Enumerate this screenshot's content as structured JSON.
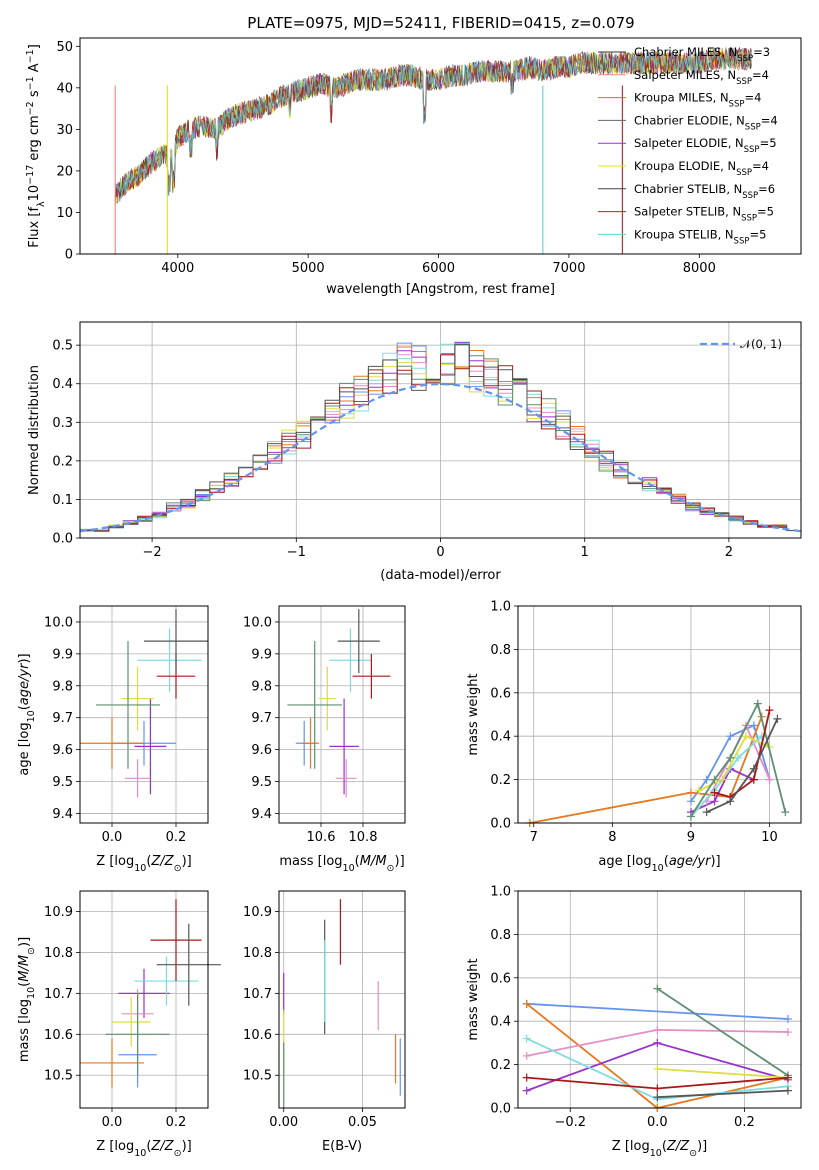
{
  "colors": [
    "#333333",
    "#f08080",
    "#cc7a00",
    "#666666",
    "#9932cc",
    "#e6e600",
    "#444444",
    "#b22222",
    "#5fd3d3"
  ],
  "panel_colors": [
    "#1f77b4",
    "#ff7f0e",
    "#2ca02c",
    "#d62728",
    "#9467bd",
    "#8c564b",
    "#e377c2",
    "#7f7f7f",
    "#bcbd22",
    "#17becf"
  ],
  "series_colors": [
    "#6495ed",
    "#e6781e",
    "#9932cc",
    "#e68cc8",
    "#7fdddd",
    "#dddd44",
    "#5f8f6f",
    "#aa1818",
    "#555555"
  ],
  "chart_data": [
    {
      "type": "line",
      "title": "PLATE=0975, MJD=52411, FIBERID=0415, z=0.079",
      "xlabel": "wavelength [Angstrom, rest frame]",
      "ylabel": "Flux [fλ10⁻¹⁷ erg cm⁻² s⁻¹ A⁻¹]",
      "xlim": [
        3250,
        8780
      ],
      "ylim": [
        0,
        52
      ],
      "xticks": [
        4000,
        5000,
        6000,
        7000,
        8000
      ],
      "yticks": [
        0,
        10,
        20,
        30,
        40,
        50
      ],
      "legend_position": "right",
      "legend": [
        {
          "base": "Chabrier MILES, N",
          "sub": "SSP",
          "tail": "=3"
        },
        {
          "base": "Salpeter MILES, N",
          "sub": "SSP",
          "tail": "=4"
        },
        {
          "base": "Kroupa MILES, N",
          "sub": "SSP",
          "tail": "=4"
        },
        {
          "base": "Chabrier ELODIE, N",
          "sub": "SSP",
          "tail": "=4"
        },
        {
          "base": "Salpeter ELODIE, N",
          "sub": "SSP",
          "tail": "=5"
        },
        {
          "base": "Kroupa ELODIE, N",
          "sub": "SSP",
          "tail": "=4"
        },
        {
          "base": "Chabrier STELIB, N",
          "sub": "SSP",
          "tail": "=6"
        },
        {
          "base": "Salpeter STELIB, N",
          "sub": "SSP",
          "tail": "=5"
        },
        {
          "base": "Kroupa STELIB, N",
          "sub": "SSP",
          "tail": "=5"
        }
      ],
      "spectrum_x": [
        3520,
        3600,
        3700,
        3800,
        3900,
        3950,
        4000,
        4100,
        4200,
        4300,
        4400,
        4500,
        4600,
        4700,
        4800,
        4900,
        5000,
        5100,
        5200,
        5300,
        5400,
        5500,
        5600,
        5700,
        5800,
        5900,
        6000,
        6100,
        6200,
        6300,
        6400,
        6500,
        6600,
        6700,
        6800,
        6900,
        7000,
        7100,
        7200,
        7300,
        7400,
        7500,
        7600,
        7700,
        7800,
        7900,
        8000,
        8100,
        8200,
        8300,
        8400
      ],
      "spectrum_y": [
        14,
        17,
        19,
        22,
        24,
        23,
        28,
        30,
        31,
        30,
        33,
        34,
        35,
        36,
        38,
        39,
        40,
        41,
        40,
        41,
        42,
        42,
        42,
        43,
        43,
        42,
        42,
        43,
        43,
        44,
        44,
        44,
        44,
        45,
        44,
        45,
        45,
        46,
        46,
        46,
        46,
        46,
        46,
        46,
        46,
        46,
        46,
        47,
        47,
        47,
        47
      ]
    },
    {
      "type": "bar",
      "xlabel": "(data-model)/error",
      "ylabel": "Normed distribution",
      "xlim": [
        -2.5,
        2.5
      ],
      "ylim": [
        0,
        0.56
      ],
      "xticks": [
        -2,
        -1,
        0,
        1,
        2
      ],
      "yticks": [
        0.0,
        0.1,
        0.2,
        0.3,
        0.4,
        0.5
      ],
      "legend": [
        "𝒩(0, 1)"
      ],
      "legend_position": "top-right",
      "bin_edges": [
        -2.5,
        -2.4,
        -2.3,
        -2.2,
        -2.1,
        -2.0,
        -1.9,
        -1.8,
        -1.7,
        -1.6,
        -1.5,
        -1.4,
        -1.3,
        -1.2,
        -1.1,
        -1.0,
        -0.9,
        -0.8,
        -0.7,
        -0.6,
        -0.5,
        -0.4,
        -0.3,
        -0.2,
        -0.1,
        0.0,
        0.1,
        0.2,
        0.3,
        0.4,
        0.5,
        0.6,
        0.7,
        0.8,
        0.9,
        1.0,
        1.1,
        1.2,
        1.3,
        1.4,
        1.5,
        1.6,
        1.7,
        1.8,
        1.9,
        2.0,
        2.1,
        2.2,
        2.3,
        2.4,
        2.5
      ],
      "hist_values": [
        0.02,
        0.02,
        0.03,
        0.04,
        0.05,
        0.06,
        0.08,
        0.09,
        0.11,
        0.13,
        0.15,
        0.17,
        0.19,
        0.22,
        0.25,
        0.27,
        0.3,
        0.33,
        0.36,
        0.38,
        0.41,
        0.43,
        0.45,
        0.44,
        0.45,
        0.46,
        0.45,
        0.43,
        0.42,
        0.4,
        0.38,
        0.35,
        0.32,
        0.29,
        0.26,
        0.23,
        0.2,
        0.18,
        0.16,
        0.14,
        0.12,
        0.1,
        0.08,
        0.07,
        0.06,
        0.05,
        0.04,
        0.03,
        0.03,
        0.02
      ]
    },
    {
      "type": "scatter",
      "xlabel": "Z [log10(Z/Z⊙)]",
      "ylabel": "age  [log10(age/yr)]",
      "xlim": [
        -0.1,
        0.3
      ],
      "ylim": [
        9.37,
        10.05
      ],
      "xticks": [
        0.0,
        0.2
      ],
      "yticks": [
        9.4,
        9.5,
        9.6,
        9.7,
        9.8,
        9.9,
        10.0
      ],
      "points": [
        {
          "x": 0.1,
          "y": 9.62,
          "xerr": 0.1,
          "yerr": 0.07,
          "c": 0
        },
        {
          "x": 0.0,
          "y": 9.62,
          "xerr": 0.1,
          "yerr": 0.08,
          "c": 1
        },
        {
          "x": 0.12,
          "y": 9.61,
          "xerr": 0.05,
          "yerr": 0.15,
          "c": 2
        },
        {
          "x": 0.08,
          "y": 9.51,
          "xerr": 0.04,
          "yerr": 0.06,
          "c": 3
        },
        {
          "x": 0.18,
          "y": 9.88,
          "xerr": 0.1,
          "yerr": 0.1,
          "c": 4
        },
        {
          "x": 0.08,
          "y": 9.76,
          "xerr": 0.05,
          "yerr": 0.1,
          "c": 5
        },
        {
          "x": 0.05,
          "y": 9.74,
          "xerr": 0.1,
          "yerr": 0.2,
          "c": 6
        },
        {
          "x": 0.2,
          "y": 9.83,
          "xerr": 0.06,
          "yerr": 0.07,
          "c": 7
        },
        {
          "x": 0.2,
          "y": 9.94,
          "xerr": 0.1,
          "yerr": 0.1,
          "c": 8
        }
      ]
    },
    {
      "type": "scatter",
      "xlabel": "mass [log10(M/M⊙)]",
      "ylabel": "",
      "xlim": [
        10.4,
        11.0
      ],
      "ylim": [
        9.37,
        10.05
      ],
      "xticks": [
        10.6,
        10.8
      ],
      "yticks": [
        9.4,
        9.5,
        9.6,
        9.7,
        9.8,
        9.9,
        10.0
      ],
      "points": [
        {
          "x": 10.52,
          "y": 9.62,
          "xerr": 0.04,
          "yerr": 0.07,
          "c": 0
        },
        {
          "x": 10.55,
          "y": 9.62,
          "xerr": 0.04,
          "yerr": 0.08,
          "c": 1
        },
        {
          "x": 10.71,
          "y": 9.61,
          "xerr": 0.07,
          "yerr": 0.15,
          "c": 2
        },
        {
          "x": 10.72,
          "y": 9.51,
          "xerr": 0.05,
          "yerr": 0.06,
          "c": 3
        },
        {
          "x": 10.74,
          "y": 9.88,
          "xerr": 0.1,
          "yerr": 0.1,
          "c": 4
        },
        {
          "x": 10.63,
          "y": 9.76,
          "xerr": 0.04,
          "yerr": 0.1,
          "c": 5
        },
        {
          "x": 10.57,
          "y": 9.74,
          "xerr": 0.13,
          "yerr": 0.2,
          "c": 6
        },
        {
          "x": 10.84,
          "y": 9.83,
          "xerr": 0.09,
          "yerr": 0.07,
          "c": 7
        },
        {
          "x": 10.78,
          "y": 9.94,
          "xerr": 0.1,
          "yerr": 0.1,
          "c": 8
        }
      ]
    },
    {
      "type": "line",
      "xlabel": "age  [log10(age/yr)]",
      "ylabel": "mass weight",
      "xlim": [
        6.8,
        10.4
      ],
      "ylim": [
        0,
        1.0
      ],
      "xticks": [
        7,
        8,
        9,
        10
      ],
      "yticks": [
        0.0,
        0.2,
        0.4,
        0.6,
        0.8,
        1.0
      ],
      "series": [
        {
          "c": 0,
          "x": [
            9.0,
            9.2,
            9.5,
            9.8,
            10.0
          ],
          "y": [
            0.1,
            0.2,
            0.4,
            0.45,
            0.2
          ]
        },
        {
          "c": 1,
          "x": [
            6.95,
            9.0,
            9.5,
            9.9
          ],
          "y": [
            0.0,
            0.14,
            0.12,
            0.49
          ]
        },
        {
          "c": 2,
          "x": [
            9.0,
            9.3,
            9.5,
            9.8
          ],
          "y": [
            0.05,
            0.1,
            0.25,
            0.2
          ]
        },
        {
          "c": 3,
          "x": [
            9.2,
            9.5,
            9.7,
            10.0
          ],
          "y": [
            0.1,
            0.3,
            0.45,
            0.2
          ]
        },
        {
          "c": 4,
          "x": [
            9.0,
            9.3,
            9.6,
            9.9
          ],
          "y": [
            0.03,
            0.15,
            0.3,
            0.4
          ]
        },
        {
          "c": 5,
          "x": [
            9.1,
            9.4,
            9.7,
            10.0
          ],
          "y": [
            0.15,
            0.2,
            0.4,
            0.35
          ]
        },
        {
          "c": 6,
          "x": [
            9.0,
            9.3,
            9.5,
            9.85,
            10.2
          ],
          "y": [
            0.03,
            0.2,
            0.3,
            0.55,
            0.05
          ]
        },
        {
          "c": 7,
          "x": [
            9.3,
            9.5,
            9.8,
            10.0
          ],
          "y": [
            0.14,
            0.12,
            0.2,
            0.52
          ]
        },
        {
          "c": 8,
          "x": [
            9.2,
            9.5,
            9.8,
            10.1
          ],
          "y": [
            0.05,
            0.1,
            0.25,
            0.48
          ]
        }
      ]
    },
    {
      "type": "scatter",
      "xlabel": "Z [log10(Z/Z⊙)]",
      "ylabel": "mass [log10(M/M⊙)]",
      "xlim": [
        -0.1,
        0.3
      ],
      "ylim": [
        10.42,
        10.95
      ],
      "xticks": [
        0.0,
        0.2
      ],
      "yticks": [
        10.5,
        10.6,
        10.7,
        10.8,
        10.9
      ],
      "points": [
        {
          "x": 0.08,
          "y": 10.55,
          "xerr": 0.06,
          "yerr": 0.08,
          "c": 0
        },
        {
          "x": 0.0,
          "y": 10.53,
          "xerr": 0.1,
          "yerr": 0.06,
          "c": 1
        },
        {
          "x": 0.1,
          "y": 10.7,
          "xerr": 0.08,
          "yerr": 0.06,
          "c": 2
        },
        {
          "x": 0.08,
          "y": 10.65,
          "xerr": 0.05,
          "yerr": 0.06,
          "c": 3
        },
        {
          "x": 0.17,
          "y": 10.73,
          "xerr": 0.1,
          "yerr": 0.06,
          "c": 4
        },
        {
          "x": 0.06,
          "y": 10.63,
          "xerr": 0.06,
          "yerr": 0.06,
          "c": 5
        },
        {
          "x": 0.08,
          "y": 10.6,
          "xerr": 0.1,
          "yerr": 0.1,
          "c": 6
        },
        {
          "x": 0.2,
          "y": 10.83,
          "xerr": 0.08,
          "yerr": 0.1,
          "c": 7
        },
        {
          "x": 0.24,
          "y": 10.77,
          "xerr": 0.1,
          "yerr": 0.1,
          "c": 8
        }
      ]
    },
    {
      "type": "scatter",
      "xlabel": "E(B-V)",
      "ylabel": "",
      "xlim": [
        -0.003,
        0.077
      ],
      "ylim": [
        10.42,
        10.95
      ],
      "xticks": [
        0.0,
        0.05
      ],
      "yticks": [
        10.5,
        10.6,
        10.7,
        10.8,
        10.9
      ],
      "points": [
        {
          "x": 0.0,
          "y": 10.7,
          "xerr": 0,
          "yerr": 0.05,
          "c": 2
        },
        {
          "x": 0.0,
          "y": 10.58,
          "xerr": 0,
          "yerr": 0.08,
          "c": 5
        },
        {
          "x": 0.0,
          "y": 10.5,
          "xerr": 0,
          "yerr": 0.08,
          "c": 6
        },
        {
          "x": 0.026,
          "y": 10.74,
          "xerr": 0,
          "yerr": 0.14,
          "c": 8
        },
        {
          "x": 0.026,
          "y": 10.73,
          "xerr": 0,
          "yerr": 0.1,
          "c": 4
        },
        {
          "x": 0.036,
          "y": 10.85,
          "xerr": 0,
          "yerr": 0.08,
          "c": 7
        },
        {
          "x": 0.06,
          "y": 10.67,
          "xerr": 0,
          "yerr": 0.06,
          "c": 3
        },
        {
          "x": 0.071,
          "y": 10.54,
          "xerr": 0,
          "yerr": 0.06,
          "c": 1
        },
        {
          "x": 0.074,
          "y": 10.52,
          "xerr": 0,
          "yerr": 0.07,
          "c": 0
        }
      ]
    },
    {
      "type": "line",
      "xlabel": "Z [log10(Z/Z⊙)]",
      "ylabel": "mass weight",
      "xlim": [
        -0.32,
        0.33
      ],
      "ylim": [
        0,
        1.0
      ],
      "xticks": [
        -0.2,
        0.0,
        0.2
      ],
      "yticks": [
        0.0,
        0.2,
        0.4,
        0.6,
        0.8,
        1.0
      ],
      "series": [
        {
          "c": 0,
          "x": [
            -0.3,
            0.3
          ],
          "y": [
            0.48,
            0.41
          ]
        },
        {
          "c": 1,
          "x": [
            -0.3,
            0.0,
            0.3
          ],
          "y": [
            0.48,
            0.0,
            0.14
          ]
        },
        {
          "c": 2,
          "x": [
            -0.3,
            0.0,
            0.3
          ],
          "y": [
            0.08,
            0.3,
            0.13
          ]
        },
        {
          "c": 3,
          "x": [
            -0.3,
            0.0,
            0.3
          ],
          "y": [
            0.24,
            0.36,
            0.35
          ]
        },
        {
          "c": 4,
          "x": [
            -0.3,
            0.0,
            0.3
          ],
          "y": [
            0.32,
            0.04,
            0.1
          ]
        },
        {
          "c": 5,
          "x": [
            0.0,
            0.3
          ],
          "y": [
            0.18,
            0.14
          ]
        },
        {
          "c": 6,
          "x": [
            0.0,
            0.3
          ],
          "y": [
            0.55,
            0.15
          ]
        },
        {
          "c": 7,
          "x": [
            -0.3,
            0.0,
            0.3
          ],
          "y": [
            0.14,
            0.09,
            0.14
          ]
        },
        {
          "c": 8,
          "x": [
            0.0,
            0.3
          ],
          "y": [
            0.05,
            0.08
          ]
        }
      ]
    }
  ]
}
